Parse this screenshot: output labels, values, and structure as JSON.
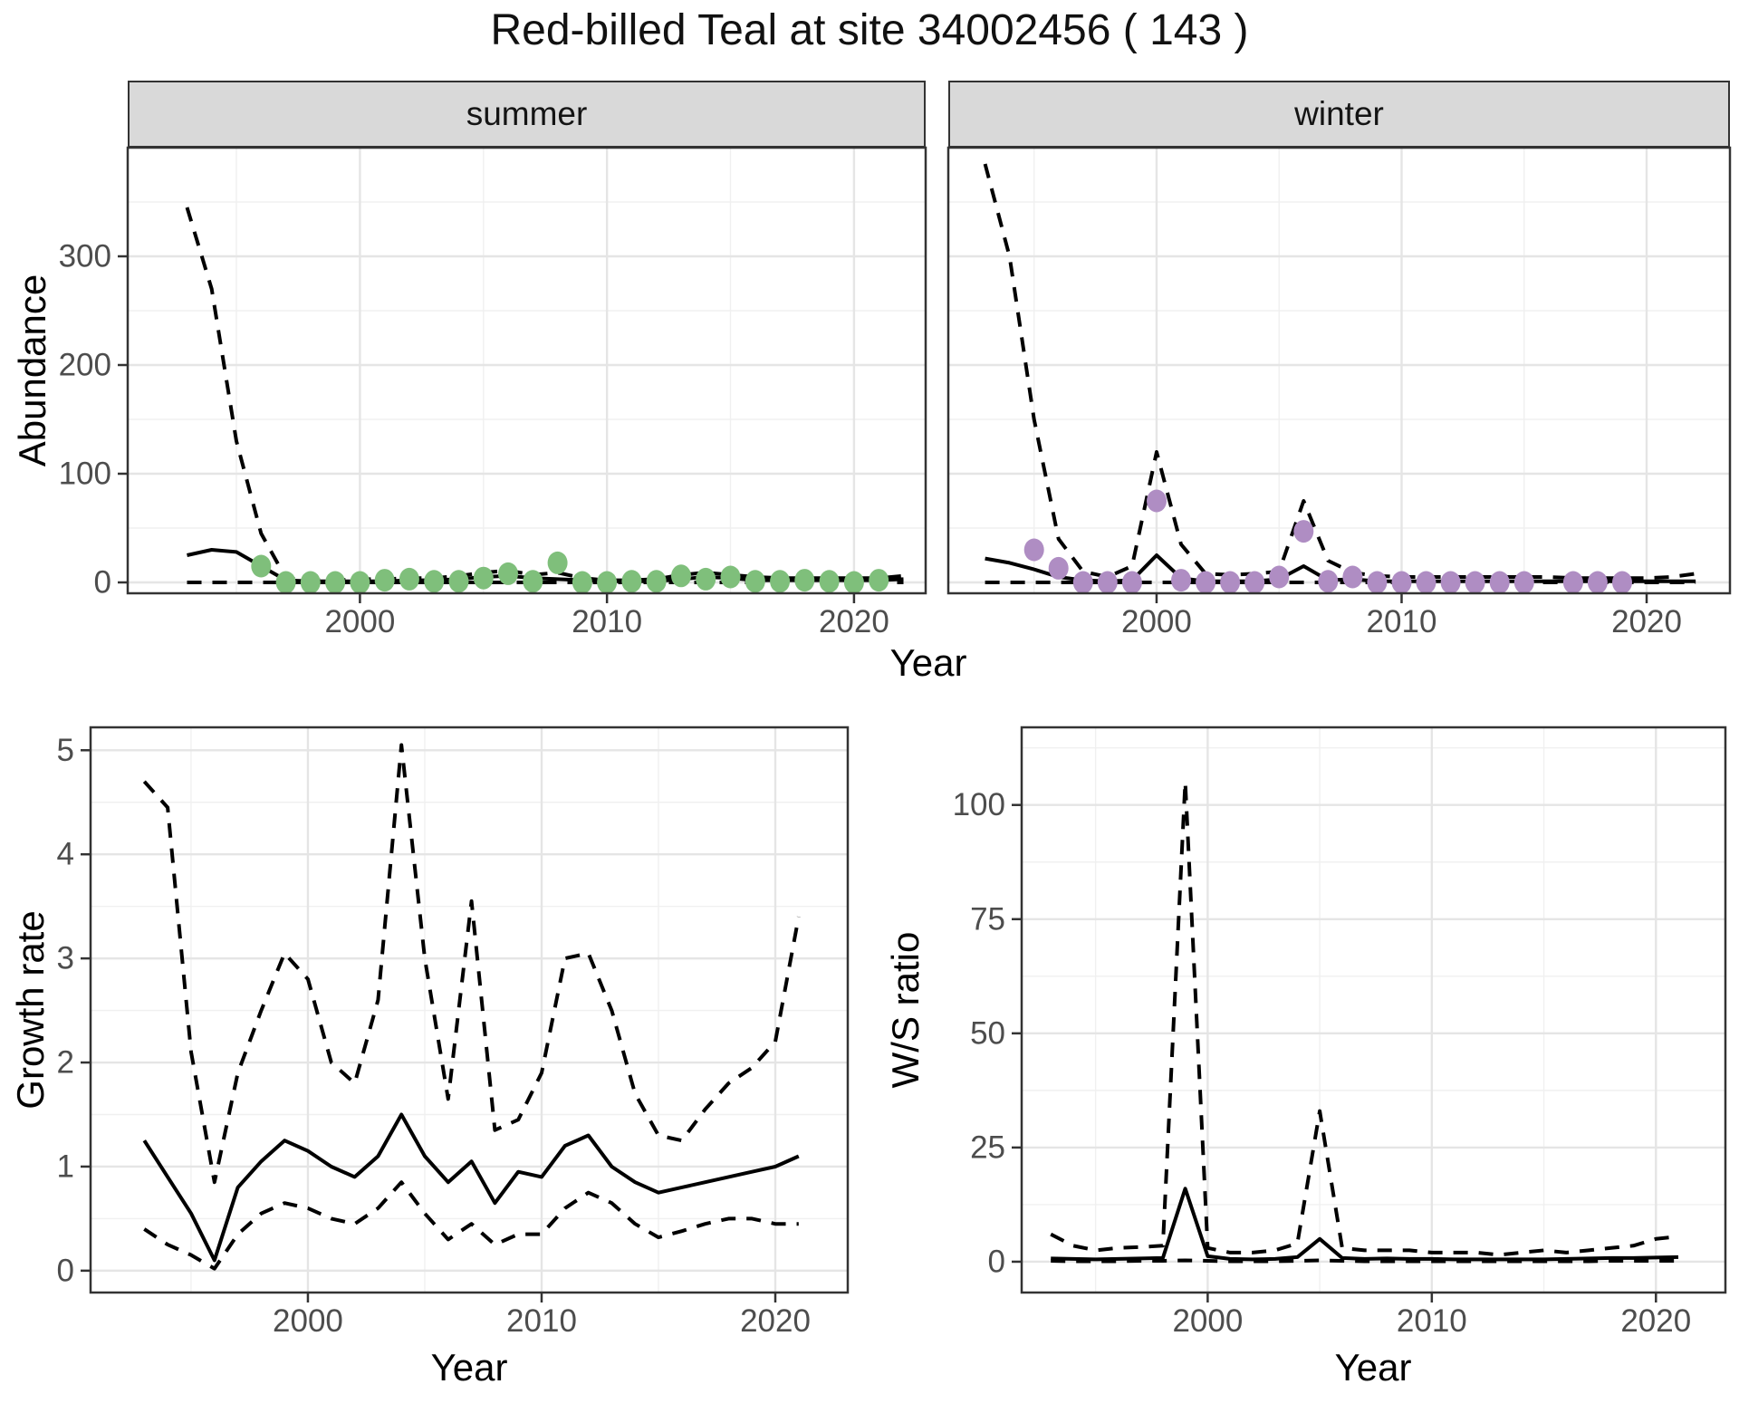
{
  "title": "Red-billed Teal at site 34002456 ( 143 )",
  "facets": {
    "summer": "summer",
    "winter": "winter"
  },
  "labels": {
    "abundance": "Abundance",
    "growth": "Growth rate",
    "ws": "W/S ratio",
    "year": "Year"
  },
  "colors": {
    "summer_point": "#7fbf7b",
    "winter_point": "#af8dc3",
    "line": "#000000",
    "panel_border": "#333333",
    "strip_bg": "#d9d9d9",
    "grid_major": "#e5e5e5",
    "grid_minor": "#f0f0f0",
    "tick_mark": "#333333",
    "tick_label": "#4d4d4d",
    "background": "#ffffff"
  },
  "chart_data": [
    {
      "id": "abundance_summer",
      "type": "line",
      "facet": "summer",
      "xlabel": "Year",
      "ylabel": "Abundance",
      "xlim": [
        1990.6,
        2022.9
      ],
      "ylim": [
        -10,
        400
      ],
      "xticks": [
        2000,
        2010,
        2020
      ],
      "xticks_minor": [
        1995,
        2005,
        2015
      ],
      "yticks": [
        0,
        100,
        200,
        300
      ],
      "yticks_minor": [
        50,
        150,
        250,
        350
      ],
      "x": [
        1993,
        1994,
        1995,
        1996,
        1997,
        1998,
        1999,
        2000,
        2001,
        2002,
        2003,
        2004,
        2005,
        2006,
        2007,
        2008,
        2009,
        2010,
        2011,
        2012,
        2013,
        2014,
        2015,
        2016,
        2017,
        2018,
        2019,
        2020,
        2021,
        2022
      ],
      "series": [
        {
          "name": "predicted_median",
          "linetype": "solid",
          "values": [
            25,
            30,
            28,
            15,
            2,
            1,
            1,
            1,
            1,
            2,
            2,
            3,
            5,
            6,
            4,
            3,
            2,
            1,
            1,
            1,
            3,
            5,
            4,
            2,
            2,
            2,
            2,
            2,
            2,
            3
          ]
        },
        {
          "name": "upper_ci",
          "linetype": "dashed",
          "values": [
            345,
            270,
            130,
            45,
            4,
            2,
            2,
            3,
            3,
            4,
            4,
            6,
            9,
            11,
            7,
            9,
            4,
            2,
            2,
            3,
            7,
            9,
            7,
            5,
            4,
            4,
            4,
            4,
            4,
            6
          ]
        },
        {
          "name": "lower_ci",
          "linetype": "dashed",
          "values": [
            0,
            0,
            0,
            0,
            0,
            0,
            0,
            0,
            0,
            0,
            0,
            0,
            0,
            0,
            0,
            0,
            0,
            0,
            0,
            0,
            0,
            0,
            0,
            0,
            0,
            0,
            0,
            0,
            0,
            0
          ]
        }
      ],
      "points": {
        "name": "observed_counts_summer",
        "color_key": "summer_point",
        "x": [
          1996,
          1997,
          1998,
          1999,
          2000,
          2001,
          2002,
          2003,
          2004,
          2005,
          2006,
          2007,
          2008,
          2009,
          2010,
          2011,
          2012,
          2013,
          2014,
          2015,
          2016,
          2017,
          2018,
          2019,
          2020,
          2021
        ],
        "values": [
          15,
          0,
          0,
          0,
          0,
          2,
          3,
          1,
          1,
          4,
          8,
          1,
          18,
          0,
          0,
          1,
          1,
          6,
          3,
          5,
          1,
          1,
          2,
          1,
          0,
          2
        ]
      }
    },
    {
      "id": "abundance_winter",
      "type": "line",
      "facet": "winter",
      "xlabel": "Year",
      "ylabel": "Abundance",
      "xlim": [
        1991.5,
        2023.4
      ],
      "ylim": [
        -10,
        400
      ],
      "xticks": [
        2000,
        2010,
        2020
      ],
      "xticks_minor": [
        1995,
        2005,
        2015
      ],
      "yticks": [
        0,
        100,
        200,
        300
      ],
      "yticks_minor": [
        50,
        150,
        250,
        350
      ],
      "x": [
        1993,
        1994,
        1995,
        1996,
        1997,
        1998,
        1999,
        2000,
        2001,
        2002,
        2003,
        2004,
        2005,
        2006,
        2007,
        2008,
        2009,
        2010,
        2011,
        2012,
        2013,
        2014,
        2015,
        2016,
        2017,
        2018,
        2019,
        2020,
        2021,
        2022
      ],
      "series": [
        {
          "name": "predicted_median",
          "linetype": "solid",
          "values": [
            22,
            18,
            12,
            5,
            2,
            1,
            2,
            25,
            4,
            1,
            1,
            1,
            3,
            15,
            2,
            3,
            1,
            1,
            1,
            1,
            1,
            1,
            1,
            1,
            1,
            1,
            1,
            1,
            1,
            1
          ]
        },
        {
          "name": "upper_ci",
          "linetype": "dashed",
          "values": [
            385,
            300,
            150,
            40,
            10,
            5,
            15,
            120,
            35,
            8,
            7,
            8,
            10,
            75,
            20,
            9,
            6,
            5,
            5,
            5,
            5,
            5,
            5,
            5,
            4,
            4,
            4,
            4,
            5,
            8
          ]
        },
        {
          "name": "lower_ci",
          "linetype": "dashed",
          "values": [
            0,
            0,
            0,
            0,
            0,
            0,
            0,
            0,
            0,
            0,
            0,
            0,
            0,
            0,
            0,
            0,
            0,
            0,
            0,
            0,
            0,
            0,
            0,
            0,
            0,
            0,
            0,
            0,
            0,
            0
          ]
        }
      ],
      "points": {
        "name": "observed_counts_winter",
        "color_key": "winter_point",
        "x": [
          1995,
          1996,
          1997,
          1998,
          1999,
          2000,
          2001,
          2002,
          2003,
          2004,
          2005,
          2006,
          2007,
          2008,
          2009,
          2010,
          2011,
          2012,
          2013,
          2014,
          2015,
          2017,
          2018,
          2019
        ],
        "values": [
          30,
          13,
          0,
          0,
          0,
          75,
          2,
          0,
          0,
          0,
          5,
          47,
          1,
          5,
          0,
          0,
          0,
          0,
          0,
          0,
          0,
          0,
          0,
          0
        ]
      }
    },
    {
      "id": "growth_rate",
      "type": "line",
      "xlabel": "Year",
      "ylabel": "Growth rate",
      "xlim": [
        1990.7,
        2023.1
      ],
      "ylim": [
        -0.21,
        5.22
      ],
      "xticks": [
        2000,
        2010,
        2020
      ],
      "xticks_minor": [
        1995,
        2005,
        2015
      ],
      "yticks": [
        0,
        1,
        2,
        3,
        4,
        5
      ],
      "yticks_minor": [
        0.5,
        1.5,
        2.5,
        3.5,
        4.5
      ],
      "x": [
        1993,
        1994,
        1995,
        1996,
        1997,
        1998,
        1999,
        2000,
        2001,
        2002,
        2003,
        2004,
        2005,
        2006,
        2007,
        2008,
        2009,
        2010,
        2011,
        2012,
        2013,
        2014,
        2015,
        2016,
        2017,
        2018,
        2019,
        2020,
        2021
      ],
      "series": [
        {
          "name": "growth_rate_median",
          "linetype": "solid",
          "values": [
            1.25,
            0.9,
            0.55,
            0.1,
            0.8,
            1.05,
            1.25,
            1.15,
            1.0,
            0.9,
            1.1,
            1.5,
            1.1,
            0.85,
            1.05,
            0.65,
            0.95,
            0.9,
            1.2,
            1.3,
            1.0,
            0.85,
            0.75,
            0.8,
            0.85,
            0.9,
            0.95,
            1.0,
            1.1
          ]
        },
        {
          "name": "upper_ci",
          "linetype": "dashed",
          "values": [
            4.7,
            4.45,
            2.1,
            0.85,
            1.9,
            2.5,
            3.05,
            2.8,
            2.0,
            1.8,
            2.6,
            5.05,
            3.0,
            1.65,
            3.55,
            1.35,
            1.45,
            1.9,
            3.0,
            3.05,
            2.5,
            1.7,
            1.3,
            1.25,
            1.55,
            1.8,
            1.95,
            2.2,
            3.4
          ]
        },
        {
          "name": "lower_ci",
          "linetype": "dashed",
          "values": [
            0.4,
            0.25,
            0.15,
            0.02,
            0.35,
            0.55,
            0.65,
            0.6,
            0.5,
            0.45,
            0.6,
            0.85,
            0.55,
            0.3,
            0.45,
            0.25,
            0.35,
            0.35,
            0.6,
            0.75,
            0.65,
            0.45,
            0.32,
            0.38,
            0.45,
            0.5,
            0.5,
            0.45,
            0.45
          ]
        }
      ]
    },
    {
      "id": "ws_ratio",
      "type": "line",
      "xlabel": "Year",
      "ylabel": "W/S ratio",
      "xlim": [
        1991.7,
        2023.1
      ],
      "ylim": [
        -6.75,
        117
      ],
      "xticks": [
        2000,
        2010,
        2020
      ],
      "xticks_minor": [
        1995,
        2005,
        2015
      ],
      "yticks": [
        0,
        25,
        50,
        75,
        100
      ],
      "yticks_minor": [
        12.5,
        37.5,
        62.5,
        87.5,
        112.5
      ],
      "x": [
        1993,
        1994,
        1995,
        1996,
        1997,
        1998,
        1999,
        2000,
        2001,
        2002,
        2003,
        2004,
        2005,
        2006,
        2007,
        2008,
        2009,
        2010,
        2011,
        2012,
        2013,
        2014,
        2015,
        2016,
        2017,
        2018,
        2019,
        2020,
        2021
      ],
      "series": [
        {
          "name": "ws_ratio_median",
          "linetype": "solid",
          "values": [
            0.7,
            0.6,
            0.5,
            0.6,
            0.7,
            0.8,
            16,
            1.2,
            0.6,
            0.5,
            0.6,
            1.0,
            5,
            0.8,
            0.6,
            0.7,
            0.6,
            0.6,
            0.5,
            0.5,
            0.5,
            0.5,
            0.5,
            0.6,
            0.7,
            0.8,
            0.8,
            0.9,
            1.0
          ]
        },
        {
          "name": "upper_ci",
          "linetype": "dashed",
          "values": [
            6,
            3.5,
            2.5,
            3,
            3.2,
            3.5,
            105,
            3,
            2,
            2,
            2.5,
            4,
            33,
            3,
            2.5,
            2.5,
            2.5,
            2,
            2,
            2,
            1.5,
            2,
            2.5,
            2,
            2.5,
            3,
            3.5,
            5,
            5.5
          ]
        },
        {
          "name": "lower_ci",
          "linetype": "dashed",
          "values": [
            0.2,
            0.1,
            0.1,
            0.1,
            0.2,
            0.2,
            0.3,
            0.2,
            0.1,
            0.1,
            0.1,
            0.2,
            0.3,
            0.2,
            0.1,
            0.1,
            0.1,
            0.1,
            0.1,
            0.1,
            0.1,
            0.1,
            0.1,
            0.1,
            0.1,
            0.2,
            0.2,
            0.2,
            0.2
          ]
        }
      ]
    }
  ]
}
